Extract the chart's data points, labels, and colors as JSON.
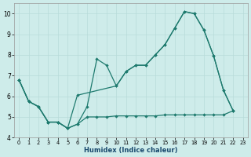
{
  "xlabel": "Humidex (Indice chaleur)",
  "bg_color": "#ceecea",
  "grid_color": "#b8dbd9",
  "line_color": "#1e7a6e",
  "xlim": [
    -0.5,
    23.5
  ],
  "ylim": [
    4,
    10.5
  ],
  "xticks": [
    0,
    1,
    2,
    3,
    4,
    5,
    6,
    7,
    8,
    9,
    10,
    11,
    12,
    13,
    14,
    15,
    16,
    17,
    18,
    19,
    20,
    21,
    22,
    23
  ],
  "yticks": [
    4,
    5,
    6,
    7,
    8,
    9,
    10
  ],
  "series1_x": [
    0,
    1,
    2,
    3,
    4,
    5,
    6,
    7,
    8,
    9,
    10,
    11,
    12,
    13,
    14,
    15,
    16,
    17,
    18,
    19,
    20,
    21,
    22
  ],
  "series1_y": [
    6.8,
    5.75,
    5.5,
    4.75,
    4.75,
    4.45,
    4.65,
    5.5,
    7.8,
    7.5,
    6.5,
    7.2,
    7.5,
    7.5,
    8.0,
    8.5,
    9.3,
    10.1,
    10.0,
    9.2,
    7.95,
    6.3,
    5.3
  ],
  "series2_x": [
    0,
    1,
    2,
    3,
    4,
    5,
    6,
    10,
    11,
    12,
    13,
    14,
    15,
    16,
    17,
    18,
    19,
    20,
    21,
    22
  ],
  "series2_y": [
    6.8,
    5.75,
    5.5,
    4.75,
    4.75,
    4.45,
    6.05,
    6.5,
    7.2,
    7.5,
    7.5,
    8.0,
    8.5,
    9.3,
    10.1,
    10.0,
    9.2,
    7.95,
    6.3,
    5.3
  ],
  "series3_x": [
    0,
    1,
    2,
    3,
    4,
    5,
    6,
    7,
    8,
    9,
    10,
    11,
    12,
    13,
    14,
    15,
    16,
    17,
    18,
    19,
    20,
    21,
    22
  ],
  "series3_y": [
    6.8,
    5.75,
    5.5,
    4.75,
    4.75,
    4.45,
    4.65,
    5.0,
    5.0,
    5.0,
    5.05,
    5.05,
    5.05,
    5.05,
    5.05,
    5.1,
    5.1,
    5.1,
    5.1,
    5.1,
    5.1,
    5.1,
    5.3
  ]
}
